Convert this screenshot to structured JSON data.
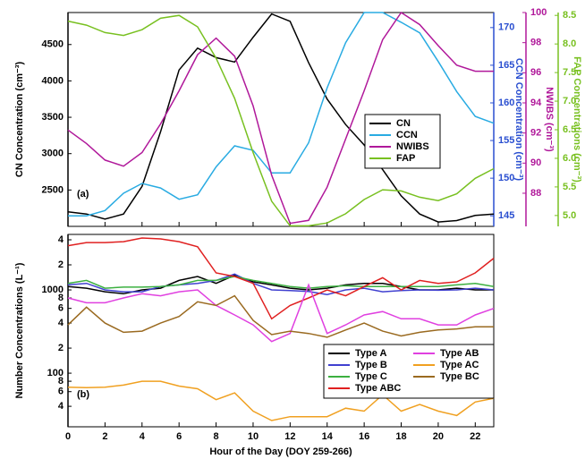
{
  "chart_data": [
    {
      "type": "line",
      "x": [
        0,
        1,
        2,
        3,
        4,
        5,
        6,
        7,
        8,
        9,
        10,
        11,
        12,
        13,
        14,
        15,
        16,
        17,
        18,
        19,
        20,
        21,
        22,
        23
      ],
      "xlim": [
        0,
        23
      ],
      "xticks": [
        0,
        2,
        4,
        6,
        8,
        10,
        12,
        14,
        16,
        18,
        20,
        22
      ],
      "show_xtick_labels": false,
      "panel_label": "(a)",
      "ylabel": "CN Concentration (cm⁻³)",
      "ylim": [
        2000,
        4940
      ],
      "yticks": [
        2500,
        3000,
        3500,
        4000,
        4500
      ],
      "ycolor": "#000000",
      "y2label": "CCN Concentration (cm⁻³)",
      "y2lim": [
        143.6,
        172
      ],
      "y2ticks": [
        145,
        150,
        155,
        160,
        165,
        170
      ],
      "y2color": "#2a4fd0",
      "y3label": "NWIBS (cm⁻³)",
      "y3lim": [
        85.8,
        100
      ],
      "y3ticks": [
        88,
        90,
        92,
        94,
        96,
        98,
        100
      ],
      "y3color": "#b0189a",
      "y4label": "FAP Concentrations (cm⁻³)",
      "y4lim": [
        4.81,
        8.55
      ],
      "y4ticks": [
        {
          "value": 5,
          "label": "5.0"
        },
        5.5,
        {
          "value": 6,
          "label": "6.0"
        },
        6.5,
        {
          "value": 7,
          "label": "7.0"
        },
        7.5,
        {
          "value": 8,
          "label": "8.0"
        },
        8.5
      ],
      "y4color": "#78c020",
      "series": [
        {
          "name": "CN",
          "color": "#000000",
          "axis": "y",
          "values": [
            2200,
            2170,
            2100,
            2170,
            2550,
            3300,
            4150,
            4450,
            4320,
            4260,
            4600,
            4920,
            4820,
            4250,
            3750,
            3400,
            3120,
            2780,
            2420,
            2170,
            2060,
            2080,
            2150,
            2170
          ]
        },
        {
          "name": "CCN",
          "color": "#29abe2",
          "axis": "y2",
          "values": [
            145,
            145,
            145.7,
            148,
            149.3,
            148.7,
            147.2,
            147.8,
            151.5,
            154.3,
            153.7,
            150.7,
            150.7,
            154.7,
            162,
            168,
            172,
            172,
            170.7,
            169.3,
            165.5,
            161.5,
            158.2,
            157.3
          ]
        },
        {
          "name": "NWIBS",
          "color": "#b0189a",
          "axis": "y3",
          "values": [
            92.2,
            91.3,
            90.2,
            89.8,
            90.7,
            92.6,
            94.8,
            97.2,
            98.3,
            97.1,
            93.8,
            89.2,
            86,
            86.2,
            88.4,
            91.6,
            94.8,
            98.2,
            100,
            99.2,
            97.8,
            96.5,
            96.1,
            96.1
          ]
        },
        {
          "name": "FAP",
          "color": "#78c020",
          "axis": "y4",
          "values": [
            8.4,
            8.33,
            8.2,
            8.15,
            8.25,
            8.45,
            8.5,
            8.3,
            7.75,
            7.05,
            6.1,
            5.25,
            4.82,
            4.82,
            4.87,
            5.03,
            5.28,
            5.45,
            5.43,
            5.32,
            5.26,
            5.38,
            5.65,
            5.82
          ]
        }
      ]
    },
    {
      "type": "line",
      "x": [
        0,
        1,
        2,
        3,
        4,
        5,
        6,
        7,
        8,
        9,
        10,
        11,
        12,
        13,
        14,
        15,
        16,
        17,
        18,
        19,
        20,
        21,
        22,
        23
      ],
      "xlim": [
        0,
        23
      ],
      "xticks": [
        0,
        2,
        4,
        6,
        8,
        10,
        12,
        14,
        16,
        18,
        20,
        22
      ],
      "show_xtick_labels": true,
      "xlabel": "Hour of the Day (DOY 259-266)",
      "panel_label": "(b)",
      "ylabel": "Number Concentrations (L⁻¹)",
      "ylog": true,
      "ylim": [
        22.7,
        4640
      ],
      "ycolor": "#000000",
      "yticks": [
        {
          "value": 4000,
          "label": "4"
        },
        {
          "value": 2000,
          "label": "2"
        },
        1000,
        {
          "value": 800,
          "label": "8"
        },
        {
          "value": 600,
          "label": "6"
        },
        {
          "value": 400,
          "label": "4"
        },
        {
          "value": 200,
          "label": "2"
        },
        100,
        {
          "value": 80,
          "label": "8"
        },
        {
          "value": 60,
          "label": "6"
        },
        {
          "value": 40,
          "label": "4"
        }
      ],
      "legend_columns": 2,
      "series": [
        {
          "name": "Type A",
          "color": "#000000",
          "axis": "y",
          "values": [
            1100,
            1050,
            950,
            900,
            1000,
            1050,
            1300,
            1450,
            1200,
            1500,
            1250,
            1150,
            1050,
            1000,
            1050,
            1150,
            1200,
            1200,
            1100,
            1000,
            1000,
            1050,
            1000,
            1000
          ]
        },
        {
          "name": "Type B",
          "color": "#4040d0",
          "axis": "y",
          "values": [
            1150,
            1200,
            1000,
            950,
            950,
            1100,
            1150,
            1200,
            1300,
            1550,
            1200,
            1000,
            980,
            960,
            880,
            1000,
            1050,
            950,
            980,
            1000,
            990,
            1000,
            1050,
            1000
          ]
        },
        {
          "name": "Type C",
          "color": "#3cb040",
          "axis": "y",
          "values": [
            1200,
            1300,
            1050,
            1080,
            1080,
            1100,
            1150,
            1300,
            1300,
            1450,
            1300,
            1200,
            1100,
            1050,
            1100,
            1120,
            1100,
            1100,
            1100,
            1100,
            1100,
            1150,
            1200,
            1100
          ]
        },
        {
          "name": "Type ABC",
          "color": "#e02020",
          "axis": "y",
          "values": [
            3400,
            3700,
            3700,
            3800,
            4200,
            4100,
            3800,
            3300,
            1600,
            1450,
            1200,
            450,
            650,
            800,
            1000,
            850,
            1100,
            1400,
            1000,
            1300,
            1200,
            1250,
            1600,
            2400
          ]
        },
        {
          "name": "Type AB",
          "color": "#e040e0",
          "axis": "y",
          "values": [
            800,
            700,
            700,
            800,
            900,
            850,
            950,
            1000,
            650,
            500,
            380,
            240,
            300,
            1150,
            300,
            380,
            500,
            550,
            450,
            450,
            380,
            380,
            500,
            600
          ]
        },
        {
          "name": "Type AC",
          "color": "#f0a020",
          "axis": "y",
          "values": [
            68,
            67,
            68,
            72,
            80,
            80,
            70,
            65,
            48,
            58,
            35,
            27,
            30,
            30,
            30,
            38,
            35,
            55,
            35,
            42,
            35,
            31,
            45,
            50
          ]
        },
        {
          "name": "Type BC",
          "color": "#9a6a20",
          "axis": "y",
          "values": [
            380,
            620,
            400,
            310,
            320,
            400,
            480,
            720,
            650,
            850,
            430,
            290,
            320,
            300,
            270,
            330,
            400,
            320,
            280,
            310,
            330,
            340,
            360,
            360
          ]
        }
      ]
    }
  ]
}
